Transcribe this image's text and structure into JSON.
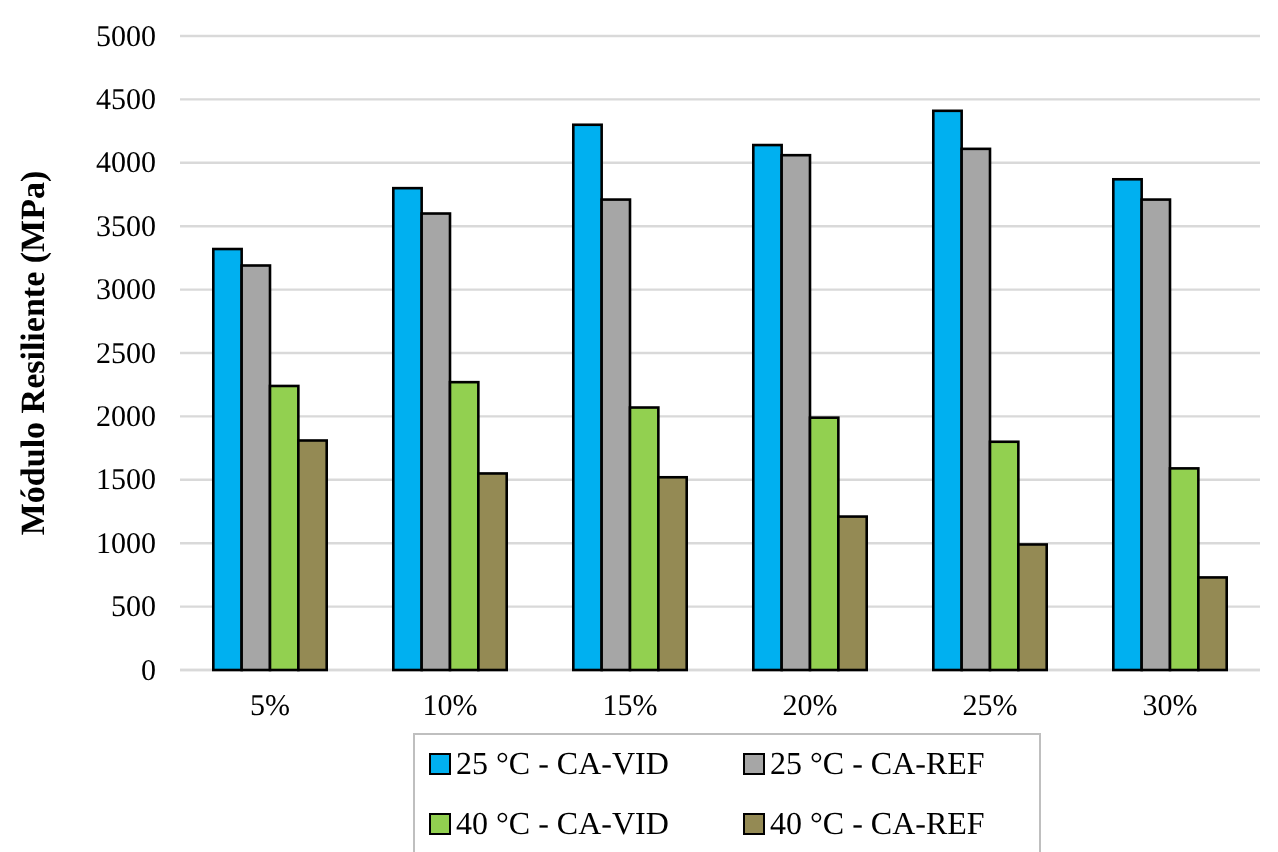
{
  "chart_data": {
    "type": "bar",
    "ylabel": "Módulo Resiliente (MPa)",
    "categories": [
      "5%",
      "10%",
      "15%",
      "20%",
      "25%",
      "30%"
    ],
    "series": [
      {
        "name": "25 °C - CA-VID",
        "color": "#00b0f0",
        "values": [
          3320,
          3800,
          4300,
          4140,
          4410,
          3870
        ]
      },
      {
        "name": "25 °C - CA-REF",
        "color": "#a6a6a6",
        "values": [
          3190,
          3600,
          3710,
          4060,
          4110,
          3710
        ]
      },
      {
        "name": "40 °C - CA-VID",
        "color": "#92d050",
        "values": [
          2240,
          2270,
          2070,
          1990,
          1800,
          1590
        ]
      },
      {
        "name": "40 °C - CA-REF",
        "color": "#948a54",
        "values": [
          1810,
          1550,
          1520,
          1210,
          990,
          730
        ]
      }
    ],
    "ylim": [
      0,
      5000
    ],
    "yticks": [
      0,
      500,
      1000,
      1500,
      2000,
      2500,
      3000,
      3500,
      4000,
      4500,
      5000
    ],
    "grid": "y",
    "legend": "bottom"
  }
}
